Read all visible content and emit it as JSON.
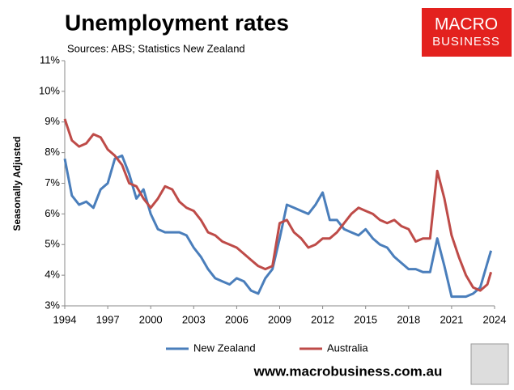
{
  "chart_data": {
    "type": "line",
    "title": "Unemployment rates",
    "subtitle": "Sources: ABS; Statistics New Zealand",
    "y_label": "Seasonally Adjusted",
    "x": [
      1994,
      1994.5,
      1995,
      1995.5,
      1996,
      1996.5,
      1997,
      1997.5,
      1998,
      1998.5,
      1999,
      1999.5,
      2000,
      2000.5,
      2001,
      2001.5,
      2002,
      2002.5,
      2003,
      2003.5,
      2004,
      2004.5,
      2005,
      2005.5,
      2006,
      2006.5,
      2007,
      2007.5,
      2008,
      2008.5,
      2009,
      2009.5,
      2010,
      2010.5,
      2011,
      2011.5,
      2012,
      2012.5,
      2013,
      2013.5,
      2014,
      2014.5,
      2015,
      2015.5,
      2016,
      2016.5,
      2017,
      2017.5,
      2018,
      2018.5,
      2019,
      2019.5,
      2020,
      2020.5,
      2021,
      2021.5,
      2022,
      2022.5,
      2023,
      2023.5,
      2023.75
    ],
    "series": [
      {
        "name": "New Zealand",
        "color": "#4a7ebb",
        "values": [
          7.8,
          6.6,
          6.3,
          6.4,
          6.2,
          6.8,
          7.0,
          7.8,
          7.9,
          7.3,
          6.5,
          6.8,
          6.0,
          5.5,
          5.4,
          5.4,
          5.4,
          5.3,
          4.9,
          4.6,
          4.2,
          3.9,
          3.8,
          3.7,
          3.9,
          3.8,
          3.5,
          3.4,
          3.9,
          4.2,
          5.2,
          6.3,
          6.2,
          6.1,
          6.0,
          6.3,
          6.7,
          5.8,
          5.8,
          5.5,
          5.4,
          5.3,
          5.5,
          5.2,
          5.0,
          4.9,
          4.6,
          4.4,
          4.2,
          4.2,
          4.1,
          4.1,
          5.2,
          4.3,
          3.3,
          3.3,
          3.3,
          3.4,
          3.6,
          4.4,
          4.8
        ]
      },
      {
        "name": "Australia",
        "color": "#be4b48",
        "values": [
          9.1,
          8.4,
          8.2,
          8.3,
          8.6,
          8.5,
          8.1,
          7.9,
          7.6,
          7.0,
          6.9,
          6.5,
          6.2,
          6.5,
          6.9,
          6.8,
          6.4,
          6.2,
          6.1,
          5.8,
          5.4,
          5.3,
          5.1,
          5.0,
          4.9,
          4.7,
          4.5,
          4.3,
          4.2,
          4.3,
          5.7,
          5.8,
          5.4,
          5.2,
          4.9,
          5.0,
          5.2,
          5.2,
          5.4,
          5.7,
          6.0,
          6.2,
          6.1,
          6.0,
          5.8,
          5.7,
          5.8,
          5.6,
          5.5,
          5.1,
          5.2,
          5.2,
          7.4,
          6.5,
          5.3,
          4.6,
          4.0,
          3.6,
          3.5,
          3.7,
          4.1
        ]
      }
    ],
    "xlim": [
      1994,
      2024
    ],
    "xticks": [
      1994,
      1997,
      2000,
      2003,
      2006,
      2009,
      2012,
      2015,
      2018,
      2021,
      2024
    ],
    "ylim": [
      3,
      11
    ],
    "yticks": [
      {
        "value": 3,
        "label": "3%"
      },
      {
        "value": 4,
        "label": "4%"
      },
      {
        "value": 5,
        "label": "5%"
      },
      {
        "value": 6,
        "label": "6%"
      },
      {
        "value": 7,
        "label": "7%"
      },
      {
        "value": 8,
        "label": "8%"
      },
      {
        "value": 9,
        "label": "9%"
      },
      {
        "value": 10,
        "label": "10%"
      },
      {
        "value": 11,
        "label": "11%"
      }
    ],
    "grid": false,
    "legend": "bottom"
  },
  "logo": {
    "line1": "MACRO",
    "line2": "BUSINESS"
  },
  "footer": "www.macrobusiness.com.au"
}
